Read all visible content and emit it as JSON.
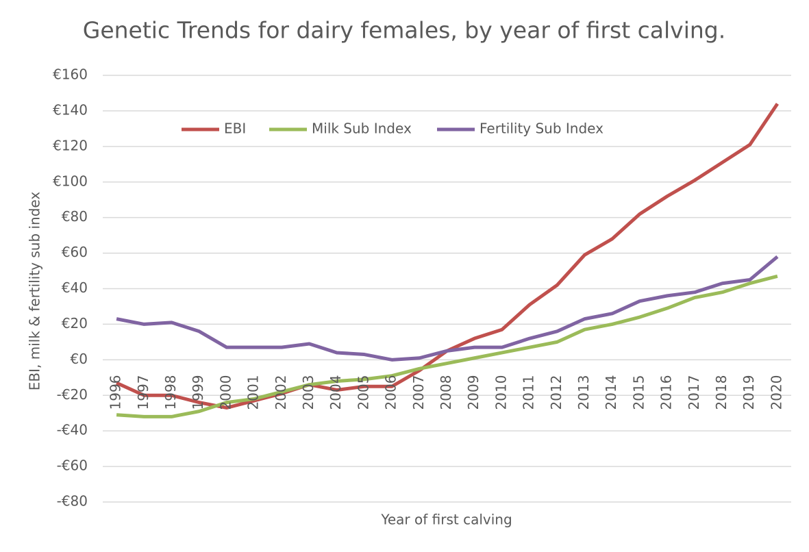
{
  "chart_data": {
    "type": "line",
    "title": "Genetic Trends for dairy females, by year of first calving.",
    "x_label": "Year of first calving",
    "y_label": "EBI, milk & fertility sub index",
    "categories": [
      "1996",
      "1997",
      "1998",
      "1999",
      "2000",
      "2001",
      "2002",
      "2003",
      "2004",
      "2005",
      "2006",
      "2007",
      "2008",
      "2009",
      "2010",
      "2011",
      "2012",
      "2013",
      "2014",
      "2015",
      "2016",
      "2017",
      "2018",
      "2019",
      "2020"
    ],
    "series": [
      {
        "name": "EBI",
        "color": "#c0504d",
        "values": [
          -13,
          -20,
          -20,
          -24,
          -27,
          -23,
          -19,
          -14,
          -17,
          -15,
          -15,
          -6,
          5,
          12,
          17,
          31,
          42,
          59,
          68,
          82,
          92,
          101,
          111,
          121,
          144
        ]
      },
      {
        "name": "Milk Sub Index",
        "color": "#9bbb59",
        "values": [
          -31,
          -32,
          -32,
          -29,
          -24,
          -22,
          -18,
          -14,
          -12,
          -11,
          -9,
          -5,
          -2,
          1,
          4,
          7,
          10,
          17,
          20,
          24,
          29,
          35,
          38,
          43,
          47
        ]
      },
      {
        "name": "Fertility Sub Index",
        "color": "#8064a2",
        "values": [
          23,
          20,
          21,
          16,
          7,
          7,
          7,
          9,
          4,
          3,
          0,
          1,
          5,
          7,
          7,
          12,
          16,
          23,
          26,
          33,
          36,
          38,
          43,
          45,
          58
        ]
      }
    ],
    "ylim": [
      -80,
      160
    ],
    "yticks": [
      {
        "value": -80,
        "label": "-€80"
      },
      {
        "value": -60,
        "label": "-€60"
      },
      {
        "value": -40,
        "label": "-€40"
      },
      {
        "value": -20,
        "label": "-€20"
      },
      {
        "value": 0,
        "label": "€0"
      },
      {
        "value": 20,
        "label": "€20"
      },
      {
        "value": 40,
        "label": "€40"
      },
      {
        "value": 60,
        "label": "€60"
      },
      {
        "value": 80,
        "label": "€80"
      },
      {
        "value": 100,
        "label": "€100"
      },
      {
        "value": 120,
        "label": "€120"
      },
      {
        "value": 140,
        "label": "€140"
      },
      {
        "value": 160,
        "label": "€160"
      }
    ],
    "grid": true
  }
}
